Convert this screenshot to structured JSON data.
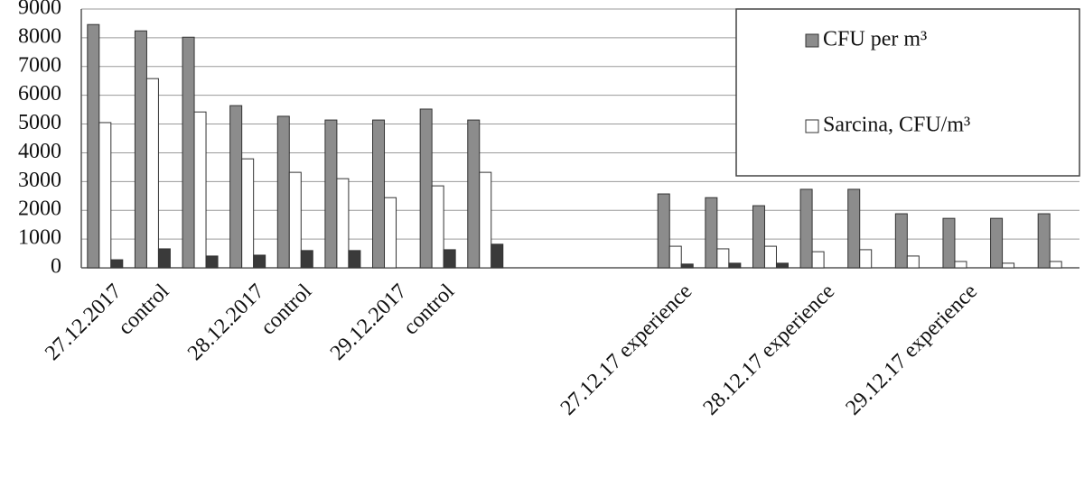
{
  "chart_data": {
    "type": "bar",
    "categories": [
      "27.12.2017",
      "control",
      null,
      "28.12.2017",
      "control",
      null,
      "29.12.2017",
      "control",
      null,
      null,
      null,
      null,
      "27.12.17 experience",
      null,
      null,
      "28.12.17 experience",
      null,
      null,
      "29.12.17 experience",
      null,
      null
    ],
    "series": [
      {
        "name": "CFU per m³",
        "color": "#8c8c8c",
        "values": [
          8460,
          8240,
          8020,
          5640,
          5270,
          5140,
          5140,
          5520,
          5140,
          null,
          null,
          null,
          2570,
          2440,
          2160,
          2730,
          2730,
          1880,
          1720,
          1720,
          1880
        ]
      },
      {
        "name": "Sarcina, CFU/m³",
        "color": "#ffffff",
        "values": [
          5050,
          6580,
          5420,
          3790,
          3320,
          3100,
          2440,
          2850,
          3320,
          null,
          null,
          null,
          750,
          660,
          750,
          560,
          630,
          410,
          220,
          160,
          220
        ]
      },
      {
        "color": "#3a3a3a",
        "values": [
          280,
          660,
          410,
          440,
          600,
          600,
          0,
          630,
          820,
          null,
          null,
          null,
          130,
          160,
          160,
          0,
          0,
          0,
          0,
          0,
          0
        ]
      }
    ],
    "ylim": [
      0,
      9000
    ],
    "yticks": [
      0,
      1000,
      2000,
      3000,
      4000,
      5000,
      6000,
      7000,
      8000,
      9000
    ],
    "grid": true,
    "legend": "top-right"
  }
}
